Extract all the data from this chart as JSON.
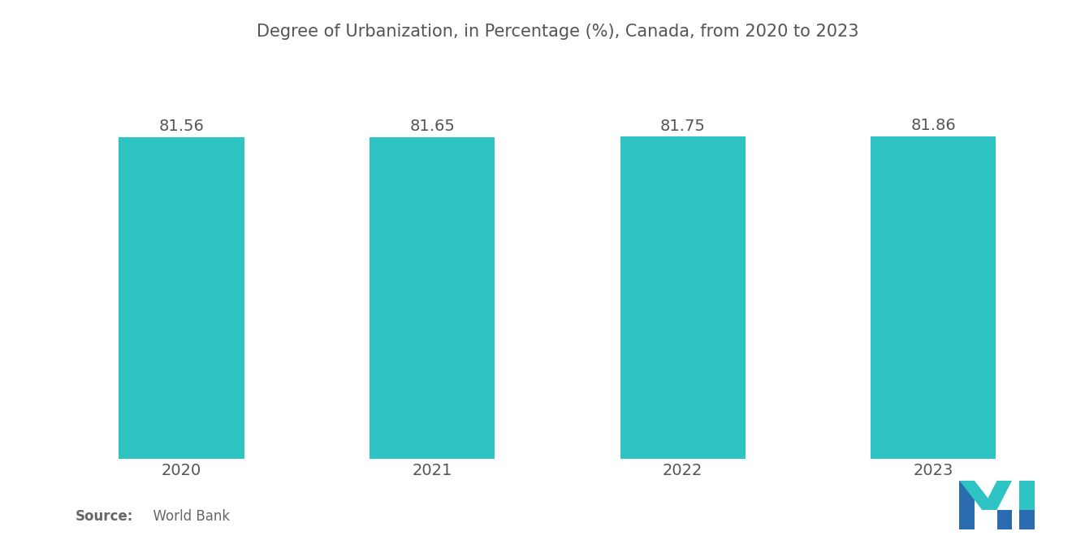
{
  "title": "Degree of Urbanization, in Percentage (%), Canada, from 2020 to 2023",
  "categories": [
    "2020",
    "2021",
    "2022",
    "2023"
  ],
  "values": [
    81.56,
    81.65,
    81.75,
    81.86
  ],
  "bar_color": "#2EC4C4",
  "background_color": "#FFFFFF",
  "ylim_min": 0,
  "ylim_max": 100,
  "title_fontsize": 15,
  "bar_label_fontsize": 14,
  "xtick_fontsize": 14,
  "source_bold": "Source:",
  "source_regular": "  World Bank",
  "source_fontsize": 12,
  "logo_blue": "#2B6CB0",
  "logo_teal": "#2EC4C4"
}
